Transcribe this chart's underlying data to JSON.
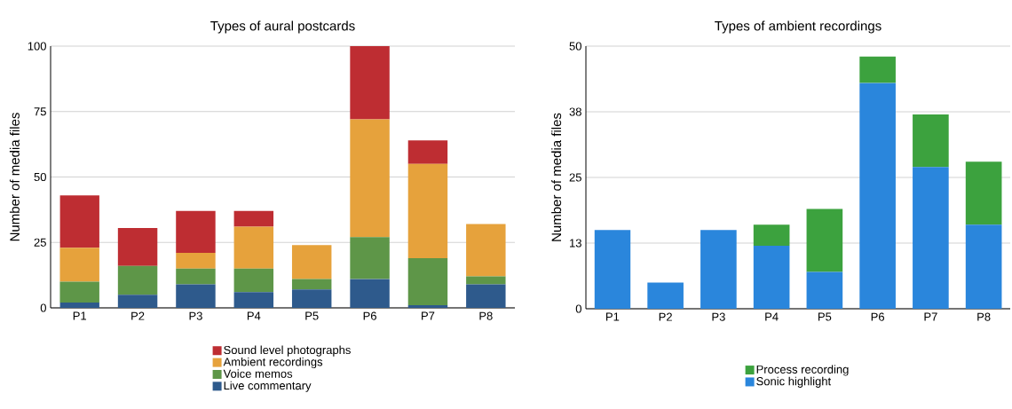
{
  "chart_data": [
    {
      "type": "bar",
      "title": "Types of aural postcards",
      "ylabel": "Number of media files",
      "stacked": true,
      "categories": [
        "P1",
        "P2",
        "P3",
        "P4",
        "P5",
        "P6",
        "P7",
        "P8"
      ],
      "series": [
        {
          "name": "Live commentary",
          "color": "#2e5a8c",
          "values": [
            2,
            5,
            9,
            6,
            7,
            11,
            1,
            9
          ]
        },
        {
          "name": "Voice memos",
          "color": "#5e9648",
          "values": [
            8,
            11,
            6,
            9,
            4,
            16,
            18,
            3
          ]
        },
        {
          "name": "Ambient recordings",
          "color": "#e6a23c",
          "values": [
            13,
            0,
            6,
            16,
            13,
            45,
            36,
            20
          ]
        },
        {
          "name": "Sound level photographs",
          "color": "#be2d32",
          "values": [
            20,
            14.5,
            16,
            6,
            0,
            28,
            9,
            0
          ]
        }
      ],
      "ylim": [
        0,
        100
      ],
      "yticks": [
        0,
        25,
        50,
        75,
        100
      ],
      "grid": "y",
      "legend": "bottom"
    },
    {
      "type": "bar",
      "title": "Types of ambient recordings",
      "ylabel": "Number of media files",
      "stacked": true,
      "categories": [
        "P1",
        "P2",
        "P3",
        "P4",
        "P5",
        "P6",
        "P7",
        "P8"
      ],
      "series": [
        {
          "name": "Sonic highlight",
          "color": "#2a86dc",
          "values": [
            15,
            5,
            15,
            12,
            7,
            43,
            27,
            16
          ]
        },
        {
          "name": "Process recording",
          "color": "#3ca23e",
          "values": [
            0,
            0,
            0,
            4,
            12,
            5,
            10,
            12
          ]
        }
      ],
      "ylim": [
        0,
        50
      ],
      "yticks": [
        0,
        {
          "value": 12.5,
          "label": "13"
        },
        25,
        {
          "value": 37.5,
          "label": "38"
        },
        50
      ],
      "grid": "y",
      "legend": "bottom"
    }
  ]
}
